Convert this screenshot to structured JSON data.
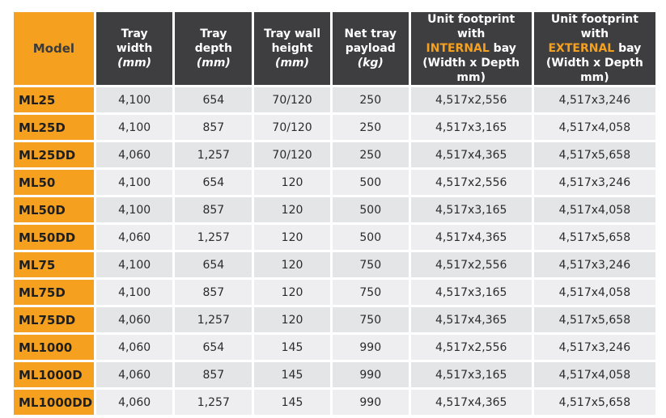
{
  "header": {
    "model": "Model",
    "tray_width": {
      "line1": "Tray",
      "line2": "width",
      "unit": "(mm)"
    },
    "tray_depth": {
      "line1": "Tray",
      "line2": "depth",
      "unit": "(mm)"
    },
    "tray_wall": {
      "line1": "Tray wall",
      "line2": "height",
      "unit": "(mm)"
    },
    "payload": {
      "line1": "Net tray",
      "line2": "payload",
      "unit": "(kg)"
    },
    "internal": {
      "line1": "Unit footprint with",
      "highlight": "INTERNAL",
      "after": " bay",
      "line3": "(Width x Depth mm)"
    },
    "external": {
      "line1": "Unit footprint with",
      "highlight": "EXTERNAL",
      "after": " bay",
      "line3": "(Width x Depth mm)"
    }
  },
  "colors": {
    "accent": "#f5a01e",
    "header_bg": "#3e3e40",
    "row_a": "#e4e5e7",
    "row_b": "#eeeef0"
  },
  "rows": [
    {
      "model": "ML25",
      "width": "4,100",
      "depth": "654",
      "wall": "70/120",
      "payload": "250",
      "internal": "4,517x2,556",
      "external": "4,517x3,246"
    },
    {
      "model": "ML25D",
      "width": "4,100",
      "depth": "857",
      "wall": "70/120",
      "payload": "250",
      "internal": "4,517x3,165",
      "external": "4,517x4,058"
    },
    {
      "model": "ML25DD",
      "width": "4,060",
      "depth": "1,257",
      "wall": "70/120",
      "payload": "250",
      "internal": "4,517x4,365",
      "external": "4,517x5,658"
    },
    {
      "model": "ML50",
      "width": "4,100",
      "depth": "654",
      "wall": "120",
      "payload": "500",
      "internal": "4,517x2,556",
      "external": "4,517x3,246"
    },
    {
      "model": "ML50D",
      "width": "4,100",
      "depth": "857",
      "wall": "120",
      "payload": "500",
      "internal": "4,517x3,165",
      "external": "4,517x4,058"
    },
    {
      "model": "ML50DD",
      "width": "4,060",
      "depth": "1,257",
      "wall": "120",
      "payload": "500",
      "internal": "4,517x4,365",
      "external": "4,517x5,658"
    },
    {
      "model": "ML75",
      "width": "4,100",
      "depth": "654",
      "wall": "120",
      "payload": "750",
      "internal": "4,517x2,556",
      "external": "4,517x3,246"
    },
    {
      "model": "ML75D",
      "width": "4,100",
      "depth": "857",
      "wall": "120",
      "payload": "750",
      "internal": "4,517x3,165",
      "external": "4,517x4,058"
    },
    {
      "model": "ML75DD",
      "width": "4,060",
      "depth": "1,257",
      "wall": "120",
      "payload": "750",
      "internal": "4,517x4,365",
      "external": "4,517x5,658"
    },
    {
      "model": "ML1000",
      "width": "4,060",
      "depth": "654",
      "wall": "145",
      "payload": "990",
      "internal": "4,517x2,556",
      "external": "4,517x3,246"
    },
    {
      "model": "ML1000D",
      "width": "4,060",
      "depth": "857",
      "wall": "145",
      "payload": "990",
      "internal": "4,517x3,165",
      "external": "4,517x4,058"
    },
    {
      "model": "ML1000DD",
      "width": "4,060",
      "depth": "1,257",
      "wall": "145",
      "payload": "990",
      "internal": "4,517x4,365",
      "external": "4,517x5,658"
    }
  ]
}
